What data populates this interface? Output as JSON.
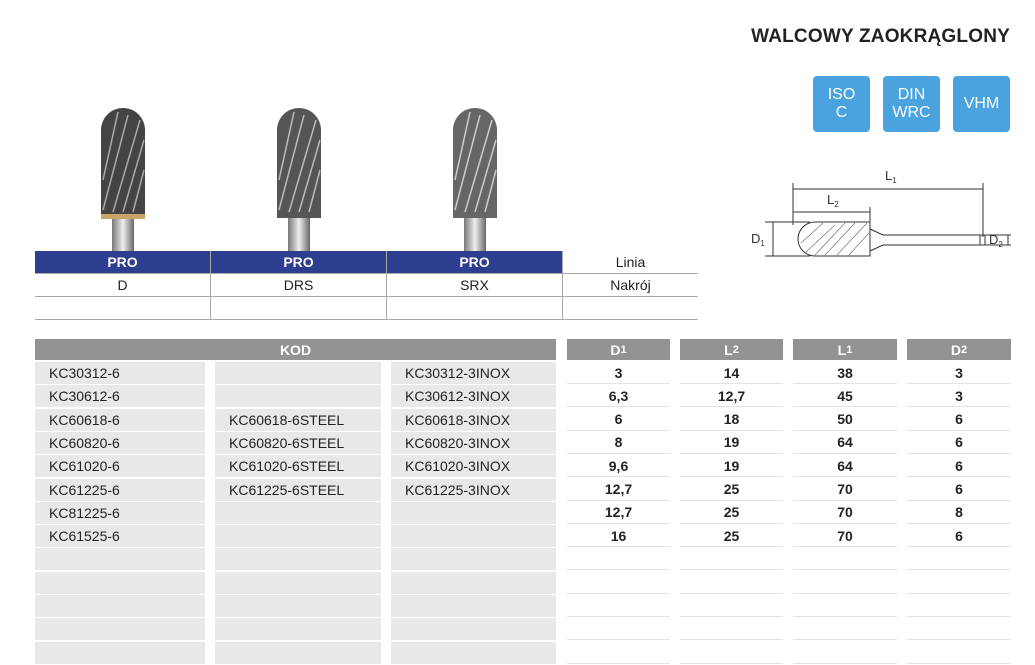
{
  "title": "WALCOWY ZAOKRĄGLONY",
  "badges": [
    {
      "line1": "ISO",
      "line2": "C"
    },
    {
      "line1": "DIN",
      "line2": "WRC"
    },
    {
      "line1": "VHM",
      "line2": ""
    }
  ],
  "badge_color": "#4aa3df",
  "diagram": {
    "L1": "L",
    "L1_sub": "1",
    "L2": "L",
    "L2_sub": "2",
    "D1": "D",
    "D1_sub": "1",
    "D2": "D",
    "D2_sub": "2"
  },
  "series_table": {
    "header_color": "#2e3f8f",
    "lines": [
      "PRO",
      "PRO",
      "PRO",
      "Linia"
    ],
    "cuts": [
      "D",
      "DRS",
      "SRX",
      "Nakrój"
    ]
  },
  "codes_table": {
    "header": "KOD",
    "dim_headers": [
      {
        "base": "D",
        "sub": "1"
      },
      {
        "base": "L",
        "sub": "2"
      },
      {
        "base": "L",
        "sub": "1"
      },
      {
        "base": "D",
        "sub": "2"
      }
    ],
    "rows": [
      {
        "c1": "KC30312-6",
        "c2": "",
        "c3": "KC30312-3INOX",
        "d1": "3",
        "l2": "14",
        "l1": "38",
        "d2": "3"
      },
      {
        "c1": "KC30612-6",
        "c2": "",
        "c3": "KC30612-3INOX",
        "d1": "6,3",
        "l2": "12,7",
        "l1": "45",
        "d2": "3"
      },
      {
        "c1": "KC60618-6",
        "c2": "KC60618-6STEEL",
        "c3": "KC60618-3INOX",
        "d1": "6",
        "l2": "18",
        "l1": "50",
        "d2": "6"
      },
      {
        "c1": "KC60820-6",
        "c2": "KC60820-6STEEL",
        "c3": "KC60820-3INOX",
        "d1": "8",
        "l2": "19",
        "l1": "64",
        "d2": "6"
      },
      {
        "c1": "KC61020-6",
        "c2": "KC61020-6STEEL",
        "c3": "KC61020-3INOX",
        "d1": "9,6",
        "l2": "19",
        "l1": "64",
        "d2": "6"
      },
      {
        "c1": "KC61225-6",
        "c2": "KC61225-6STEEL",
        "c3": "KC61225-3INOX",
        "d1": "12,7",
        "l2": "25",
        "l1": "70",
        "d2": "6"
      },
      {
        "c1": "KC81225-6",
        "c2": "",
        "c3": "",
        "d1": "12,7",
        "l2": "25",
        "l1": "70",
        "d2": "8"
      },
      {
        "c1": "KC61525-6",
        "c2": "",
        "c3": "",
        "d1": "16",
        "l2": "25",
        "l1": "70",
        "d2": "6"
      },
      {
        "c1": "",
        "c2": "",
        "c3": "",
        "d1": "",
        "l2": "",
        "l1": "",
        "d2": ""
      },
      {
        "c1": "",
        "c2": "",
        "c3": "",
        "d1": "",
        "l2": "",
        "l1": "",
        "d2": ""
      },
      {
        "c1": "",
        "c2": "",
        "c3": "",
        "d1": "",
        "l2": "",
        "l1": "",
        "d2": ""
      },
      {
        "c1": "",
        "c2": "",
        "c3": "",
        "d1": "",
        "l2": "",
        "l1": "",
        "d2": ""
      },
      {
        "c1": "",
        "c2": "",
        "c3": "",
        "d1": "",
        "l2": "",
        "l1": "",
        "d2": ""
      }
    ]
  }
}
